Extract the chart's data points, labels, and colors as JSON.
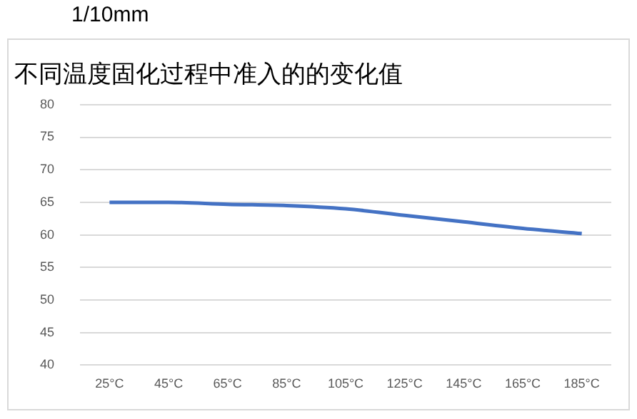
{
  "chart_data": {
    "type": "line",
    "title": "不同温度固化过程中准入的的变化值",
    "ylabel": "1/10mm",
    "categories": [
      "25°C",
      "45°C",
      "65°C",
      "85°C",
      "105°C",
      "125°C",
      "145°C",
      "165°C",
      "185°C"
    ],
    "series": [
      {
        "color": "#4472c4",
        "values": [
          65,
          65,
          64.7,
          64.5,
          64,
          63,
          62,
          61,
          60.2
        ]
      }
    ],
    "ylim": [
      40,
      80
    ],
    "yticks": [
      40,
      45,
      50,
      55,
      60,
      65,
      70,
      75,
      80
    ],
    "grid": "y",
    "legend": false,
    "marker": "none",
    "line_style": "solid"
  }
}
